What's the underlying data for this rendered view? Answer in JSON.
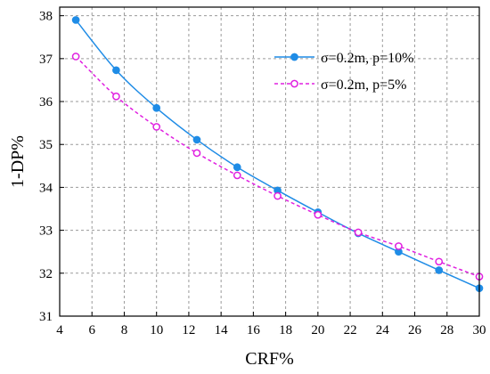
{
  "chart_data": {
    "type": "line",
    "xlabel": "CRF%",
    "ylabel": "1-DP%",
    "xlim": [
      4,
      30
    ],
    "ylim": [
      31,
      38.2
    ],
    "xticks": [
      "4",
      "6",
      "8",
      "10",
      "12",
      "14",
      "16",
      "18",
      "20",
      "22",
      "24",
      "26",
      "28",
      "30"
    ],
    "yticks": [
      "31",
      "32",
      "33",
      "34",
      "35",
      "36",
      "37",
      "38"
    ],
    "grid": true,
    "legend_position": "top-right",
    "series": [
      {
        "name": "σ=0.2m, p=10%",
        "color": "#1f8ce6",
        "style": "solid",
        "marker": "filled-circle",
        "x": [
          5,
          7.5,
          10,
          12.5,
          15,
          17.5,
          20,
          22.5,
          25,
          27.5,
          30
        ],
        "y": [
          37.9,
          36.73,
          35.85,
          35.11,
          34.47,
          33.93,
          33.42,
          32.93,
          32.5,
          32.07,
          31.65
        ]
      },
      {
        "name": "σ=0.2m, p=5%",
        "color": "#e020e0",
        "style": "dashed",
        "marker": "open-circle",
        "x": [
          5,
          7.5,
          10,
          12.5,
          15,
          17.5,
          20,
          22.5,
          25,
          27.5,
          30
        ],
        "y": [
          37.05,
          36.12,
          35.41,
          34.8,
          34.28,
          33.8,
          33.36,
          32.95,
          32.63,
          32.27,
          31.92
        ]
      }
    ]
  }
}
